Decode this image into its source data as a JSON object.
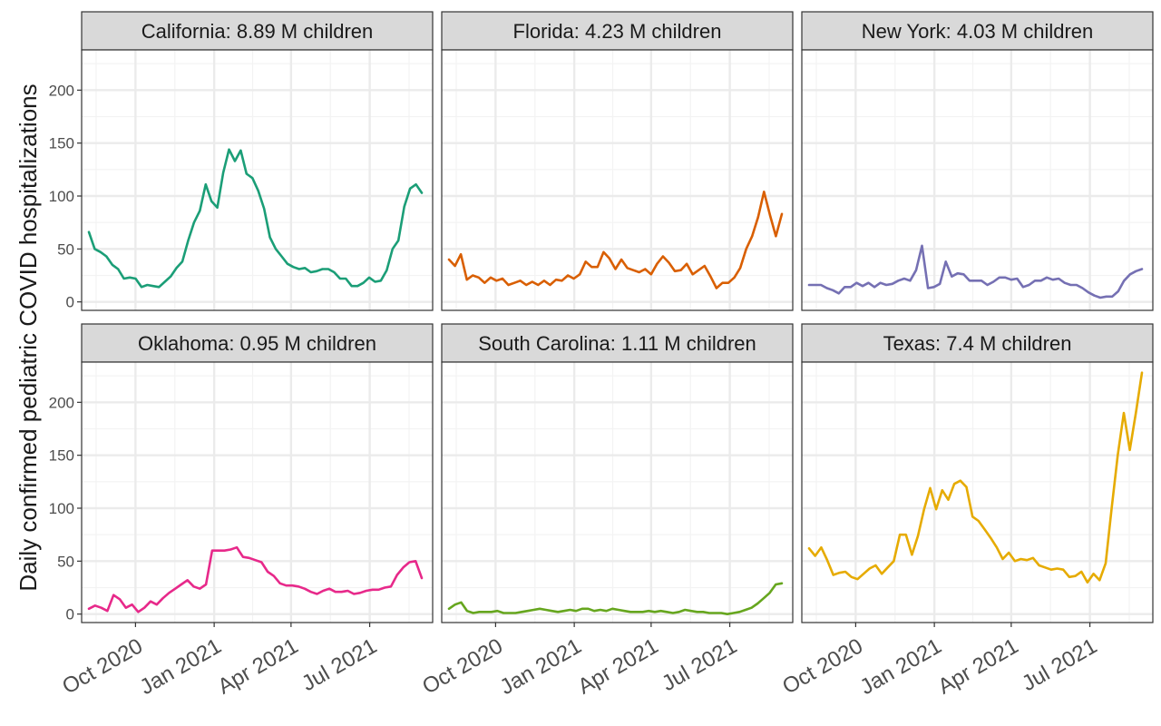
{
  "chart_data": {
    "type": "line",
    "ylabel": "Daily confirmed pediatric COVID hospitalizations",
    "ylim": [
      -8,
      238
    ],
    "yticks": [
      0,
      50,
      100,
      150,
      200
    ],
    "xlim": [
      0,
      58
    ],
    "xticks": [
      {
        "label": "Oct 2020",
        "pos": 8.9
      },
      {
        "label": "Jan 2021",
        "pos": 21.9
      },
      {
        "label": "Apr 2021",
        "pos": 34.6
      },
      {
        "label": "Jul 2021",
        "pos": 47.6
      }
    ],
    "panels": [
      {
        "title": "California: 8.89 M children",
        "color": "#1b9e77",
        "values": [
          66,
          50,
          47,
          43,
          35,
          31,
          22,
          23,
          22,
          14,
          16,
          15,
          14,
          19,
          24,
          32,
          38,
          58,
          75,
          86,
          111,
          95,
          89,
          122,
          144,
          133,
          143,
          121,
          117,
          105,
          88,
          61,
          50,
          43,
          36,
          33,
          31,
          32,
          28,
          29,
          31,
          31,
          28,
          22,
          22,
          15,
          15,
          18,
          23,
          19,
          20,
          30,
          50,
          58,
          90,
          107,
          111,
          103
        ],
        "showXAxis": false,
        "showYAxis": true
      },
      {
        "title": "Florida: 4.23 M children",
        "color": "#d95f02",
        "values": [
          40,
          34,
          45,
          21,
          25,
          23,
          18,
          23,
          20,
          22,
          16,
          18,
          20,
          16,
          19,
          16,
          20,
          16,
          21,
          20,
          25,
          22,
          26,
          38,
          33,
          33,
          47,
          41,
          31,
          40,
          32,
          30,
          28,
          31,
          26,
          36,
          43,
          37,
          29,
          30,
          36,
          26,
          30,
          34,
          24,
          13,
          18,
          18,
          23,
          32,
          50,
          62,
          80,
          104,
          82,
          62,
          83
        ],
        "showXAxis": false,
        "showYAxis": false
      },
      {
        "title": "New York: 4.03 M children",
        "color": "#7570b3",
        "values": [
          16,
          16,
          16,
          13,
          11,
          8,
          14,
          14,
          18,
          15,
          18,
          14,
          18,
          16,
          17,
          20,
          22,
          20,
          30,
          53,
          13,
          14,
          17,
          38,
          24,
          27,
          26,
          20,
          20,
          20,
          16,
          19,
          23,
          23,
          21,
          22,
          14,
          16,
          20,
          20,
          23,
          21,
          22,
          18,
          16,
          16,
          13,
          9,
          6,
          4,
          5,
          5,
          10,
          20,
          26,
          29,
          31
        ],
        "showXAxis": false,
        "showYAxis": false
      },
      {
        "title": "Oklahoma: 0.95 M children",
        "color": "#e7298a",
        "values": [
          5,
          8,
          6,
          3,
          18,
          14,
          6,
          9,
          2,
          6,
          12,
          9,
          15,
          20,
          24,
          28,
          32,
          26,
          24,
          28,
          60,
          60,
          60,
          61,
          63,
          54,
          53,
          51,
          49,
          40,
          36,
          29,
          27,
          27,
          26,
          24,
          21,
          19,
          22,
          24,
          21,
          21,
          22,
          19,
          20,
          22,
          23,
          23,
          25,
          26,
          37,
          44,
          49,
          50,
          34
        ],
        "showXAxis": true,
        "showYAxis": true
      },
      {
        "title": "South Carolina: 1.11 M children",
        "color": "#66a61e",
        "values": [
          5,
          9,
          11,
          3,
          1,
          2,
          2,
          2,
          3,
          1,
          1,
          1,
          2,
          3,
          4,
          5,
          4,
          3,
          2,
          3,
          4,
          3,
          5,
          5,
          3,
          4,
          3,
          5,
          4,
          3,
          2,
          2,
          2,
          3,
          2,
          3,
          2,
          1,
          2,
          4,
          3,
          2,
          2,
          1,
          1,
          1,
          0,
          1,
          2,
          4,
          6,
          10,
          15,
          20,
          28,
          29
        ],
        "showXAxis": true,
        "showYAxis": false
      },
      {
        "title": "Texas: 7.4 M children",
        "color": "#e6ab02",
        "values": [
          62,
          55,
          63,
          51,
          37,
          39,
          40,
          35,
          33,
          38,
          43,
          46,
          38,
          44,
          50,
          75,
          75,
          56,
          74,
          99,
          119,
          99,
          117,
          108,
          123,
          126,
          120,
          92,
          88,
          80,
          72,
          63,
          52,
          58,
          50,
          52,
          51,
          53,
          46,
          44,
          42,
          43,
          42,
          35,
          36,
          40,
          30,
          38,
          32,
          48,
          100,
          150,
          190,
          155,
          190,
          228
        ],
        "showXAxis": true,
        "showYAxis": false
      }
    ]
  }
}
